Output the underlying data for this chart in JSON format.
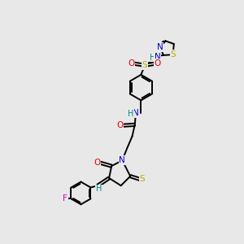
{
  "bg_color": "#e8e8e8",
  "atom_colors": {
    "C": "#000000",
    "N": "#0000cc",
    "O": "#dd0000",
    "S": "#bbaa00",
    "F": "#cc00cc",
    "H": "#008888"
  },
  "bond_color": "#000000",
  "figsize": [
    3.0,
    3.0
  ],
  "dpi": 100
}
